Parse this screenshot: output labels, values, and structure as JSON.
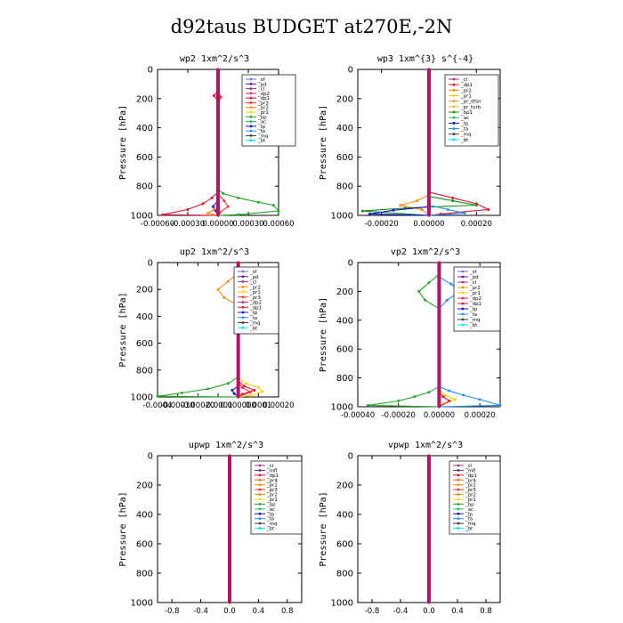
{
  "page_title": "d92taus  BUDGET at270E,-2N",
  "colors": {
    "sf": "#7b68ee",
    "pd": "#6a0dad",
    "cl": "#b22d8f",
    "dp2": "#e0206a",
    "dp1": "#e81030",
    "pr3": "#ff3030",
    "pr2": "#ff8c00",
    "pr1": "#ffd000",
    "bp": "#22aa22",
    "ac": "#20c060",
    "tp": "#1010e0",
    "ta": "#1e90ff",
    "mq": "#404040",
    "bt": "#00e5ee",
    "pr4": "#ff6020",
    "mfl": "#5b2c8f",
    "pr_dfsn": "#ff9020",
    "pr_turb": "#e8c020",
    "bp1": "#109010",
    "column": "#c01060"
  },
  "chart_data": [
    {
      "type": "line",
      "title": "wp2   1xm^2/s^3",
      "ylabel": "Pressure [hPa]",
      "ylim": [
        1000,
        0
      ],
      "yticks": [
        0,
        200,
        400,
        600,
        800,
        1000
      ],
      "xlim": [
        -0.0006,
        0.0006
      ],
      "xtick_labels": [
        "-0.00060",
        "-0.00030",
        "0.00000",
        "0.00030",
        "0.00060"
      ],
      "xticks": [
        -0.0006,
        -0.0003,
        0.0,
        0.0003,
        0.0006
      ],
      "legend": [
        "_sf",
        "_pd",
        "_cl",
        "_dp2",
        "_dp1",
        "_pr3",
        "_pr2",
        "_pr1",
        "_bp",
        "_ac",
        "_tp",
        "_ta",
        "_mq",
        "_bt"
      ],
      "series": [
        {
          "key": "bp",
          "x": [
            0,
            0,
            5e-05,
            0.0002,
            0.0004,
            0.00055,
            0.0006,
            0.0002,
            0
          ],
          "y": [
            0,
            820,
            850,
            880,
            910,
            930,
            970,
            995,
            1000
          ]
        },
        {
          "key": "dp1",
          "x": [
            0,
            0,
            -4e-05,
            0,
            0,
            -6e-05,
            -0.00015,
            -0.0003,
            -0.00055,
            0
          ],
          "y": [
            0,
            140,
            180,
            220,
            840,
            880,
            920,
            960,
            995,
            1000
          ]
        },
        {
          "key": "pr3",
          "x": [
            0,
            0,
            3e-05,
            0,
            0,
            6e-05,
            0.0001,
            2e-05,
            0
          ],
          "y": [
            0,
            150,
            190,
            230,
            850,
            900,
            940,
            980,
            1000
          ]
        },
        {
          "key": "tp",
          "x": [
            0,
            0,
            -5e-05,
            -3e-05,
            0
          ],
          "y": [
            0,
            900,
            940,
            965,
            1000
          ]
        },
        {
          "key": "pr2",
          "x": [
            0,
            0,
            -4e-05,
            -0.0001,
            0
          ],
          "y": [
            0,
            920,
            960,
            985,
            1000
          ]
        }
      ]
    },
    {
      "type": "line",
      "title": "wp3   1xm^{3} s^{-4}",
      "ylabel": "Pressure [hPa]",
      "ylim": [
        1000,
        0
      ],
      "yticks": [
        0,
        200,
        400,
        600,
        800,
        1000
      ],
      "xlim": [
        -0.0003,
        0.0003
      ],
      "xtick_labels": [
        "-0.00020",
        "0.00000",
        "0.00020"
      ],
      "xticks": [
        -0.0002,
        0.0,
        0.0002
      ],
      "legend": [
        "_cl",
        "_dp1",
        "_pr2",
        "_pr1",
        "_pr_dfsn",
        "_pr_turb",
        "_bp1",
        "_ac",
        "_tp",
        "_ta",
        "_mq",
        "_bt"
      ],
      "series": [
        {
          "key": "dp1",
          "x": [
            0,
            0,
            0.0001,
            0.0002,
            0.00025,
            5e-05,
            0
          ],
          "y": [
            0,
            840,
            880,
            920,
            960,
            990,
            1000
          ]
        },
        {
          "key": "pr2",
          "x": [
            0,
            0,
            -5e-05,
            -0.00012,
            -3e-05,
            0
          ],
          "y": [
            0,
            860,
            900,
            930,
            960,
            1000
          ]
        },
        {
          "key": "bp1",
          "x": [
            0,
            0,
            0.0001,
            0.0002,
            -0.0001,
            -0.00028,
            0
          ],
          "y": [
            0,
            870,
            900,
            930,
            950,
            970,
            1000
          ]
        },
        {
          "key": "tp",
          "x": [
            0,
            0,
            -0.00015,
            -0.00025,
            0
          ],
          "y": [
            0,
            940,
            965,
            990,
            1000
          ]
        },
        {
          "key": "ta",
          "x": [
            0,
            0,
            8e-05,
            0.00015,
            0
          ],
          "y": [
            0,
            930,
            960,
            985,
            1000
          ]
        }
      ]
    },
    {
      "type": "line",
      "title": "up2   1xm^2/s^3",
      "ylabel": "Pressure [hPa]",
      "ylim": [
        1000,
        0
      ],
      "yticks": [
        0,
        200,
        400,
        600,
        800,
        1000
      ],
      "xlim": [
        -0.0004,
        0.0002
      ],
      "xtick_labels": [
        "-0.0004",
        "-0.00030",
        "-0.00020",
        "-0.0001",
        "0.000000",
        "0.0001",
        "0.00020"
      ],
      "xticks": [
        -0.0004,
        -0.0003,
        -0.0002,
        -0.0001,
        0.0,
        0.0001,
        0.0002
      ],
      "legend": [
        "_sf",
        "_pd",
        "_cl",
        "_pr2",
        "_pr1",
        "_pr3",
        "_dp2",
        "_dp1",
        "_tp",
        "_ta",
        "_mq",
        "_bt"
      ],
      "series": [
        {
          "key": "pr2",
          "x": [
            0,
            0,
            -5e-05,
            -0.0001,
            -7e-05,
            0,
            0,
            0
          ],
          "y": [
            0,
            80,
            140,
            200,
            260,
            320,
            400,
            1000
          ]
        },
        {
          "key": "ta",
          "x": [
            0,
            0,
            6e-05,
            0.00012,
            5e-05,
            0
          ],
          "y": [
            0,
            100,
            150,
            200,
            260,
            320
          ]
        },
        {
          "key": "bp",
          "x": [
            0,
            0,
            -5e-05,
            -0.00015,
            -0.00028,
            -0.0004,
            0
          ],
          "y": [
            0,
            850,
            900,
            940,
            970,
            995,
            1000
          ]
        },
        {
          "key": "pr1",
          "x": [
            0,
            0,
            4e-05,
            0.0001,
            0.00012,
            6e-05,
            0
          ],
          "y": [
            0,
            860,
            900,
            930,
            960,
            990,
            1000
          ]
        },
        {
          "key": "dp1",
          "x": [
            0,
            0,
            3e-05,
            8e-05,
            2e-05,
            0
          ],
          "y": [
            0,
            880,
            920,
            950,
            980,
            1000
          ]
        },
        {
          "key": "tp",
          "x": [
            0,
            0,
            -3e-05,
            -2e-05,
            0
          ],
          "y": [
            0,
            920,
            950,
            975,
            1000
          ]
        },
        {
          "key": "pr3",
          "x": [
            0,
            0,
            2e-05,
            6e-05,
            0
          ],
          "y": [
            0,
            890,
            930,
            965,
            1000
          ]
        }
      ]
    },
    {
      "type": "line",
      "title": "vp2   1xm^2/s^3",
      "ylabel": "Pressure [hPa]",
      "ylim": [
        1000,
        0
      ],
      "yticks": [
        0,
        200,
        400,
        600,
        800,
        1000
      ],
      "xlim": [
        -0.0004,
        0.0003
      ],
      "xtick_labels": [
        "-0.00040",
        "-0.00020",
        "0.00000",
        "0.00020"
      ],
      "xticks": [
        -0.0004,
        -0.0002,
        0.0,
        0.0002
      ],
      "legend": [
        "_sf",
        "_pd",
        "_cl",
        "_pr2",
        "_pr1",
        "_dp2",
        "_dp1",
        "_tp",
        "_ta",
        "_mq",
        "_bt"
      ],
      "series": [
        {
          "key": "bp",
          "x": [
            0,
            0,
            -5e-05,
            -0.0001,
            -7e-05,
            0,
            0,
            0
          ],
          "y": [
            0,
            80,
            140,
            200,
            260,
            320,
            800,
            1000
          ]
        },
        {
          "key": "ta",
          "x": [
            0,
            0,
            6e-05,
            0.0001,
            4e-05,
            0
          ],
          "y": [
            0,
            100,
            150,
            200,
            260,
            320
          ]
        },
        {
          "key": "bp",
          "x": [
            0,
            0,
            -5e-05,
            -0.00012,
            -0.0002,
            -0.00035,
            0
          ],
          "y": [
            0,
            860,
            900,
            930,
            960,
            990,
            1000
          ]
        },
        {
          "key": "ta",
          "x": [
            0,
            0,
            5e-05,
            0.00012,
            0.0002,
            0.0003,
            0
          ],
          "y": [
            0,
            860,
            890,
            920,
            950,
            990,
            1000
          ]
        },
        {
          "key": "pr1",
          "x": [
            0,
            0,
            3e-05,
            8e-05,
            2e-05,
            0
          ],
          "y": [
            0,
            880,
            920,
            950,
            980,
            1000
          ]
        },
        {
          "key": "dp1",
          "x": [
            0,
            0,
            2e-05,
            5e-05,
            0
          ],
          "y": [
            0,
            900,
            930,
            960,
            1000
          ]
        }
      ]
    },
    {
      "type": "line",
      "title": "upwp   1xm^2/s^3",
      "ylabel": "Pressure [hPa]",
      "ylim": [
        1000,
        0
      ],
      "yticks": [
        0,
        200,
        400,
        600,
        800,
        1000
      ],
      "xlim": [
        -1.0,
        1.0
      ],
      "xtick_labels": [
        "-0.8",
        "-0.4",
        "0.0",
        "0.4",
        "0.8"
      ],
      "xticks": [
        -0.8,
        -0.4,
        0.0,
        0.4,
        0.8
      ],
      "legend": [
        "_cl",
        "_mfl",
        "_dp1",
        "_pr4",
        "_pr2",
        "_pr3",
        "_pr2",
        "_pr1",
        "_bp",
        "_ac",
        "_tp",
        "_ta",
        "_mq",
        "_bt"
      ],
      "series": []
    },
    {
      "type": "line",
      "title": "vpwp   1xm^2/s^3",
      "ylabel": "Pressure [hPa]",
      "ylim": [
        1000,
        0
      ],
      "yticks": [
        0,
        200,
        400,
        600,
        800,
        1000
      ],
      "xlim": [
        -1.0,
        1.0
      ],
      "xtick_labels": [
        "-0.8",
        "-0.4",
        "0.0",
        "0.4",
        "0.8"
      ],
      "xticks": [
        -0.8,
        -0.4,
        0.0,
        0.4,
        0.8
      ],
      "legend": [
        "_cl",
        "_mfl",
        "_dp1",
        "_pr4",
        "_pr2",
        "_pr3",
        "_pr2",
        "_pr1",
        "_bp",
        "_ac",
        "_tp",
        "_ta",
        "_mq",
        "_bt"
      ],
      "series": []
    }
  ]
}
